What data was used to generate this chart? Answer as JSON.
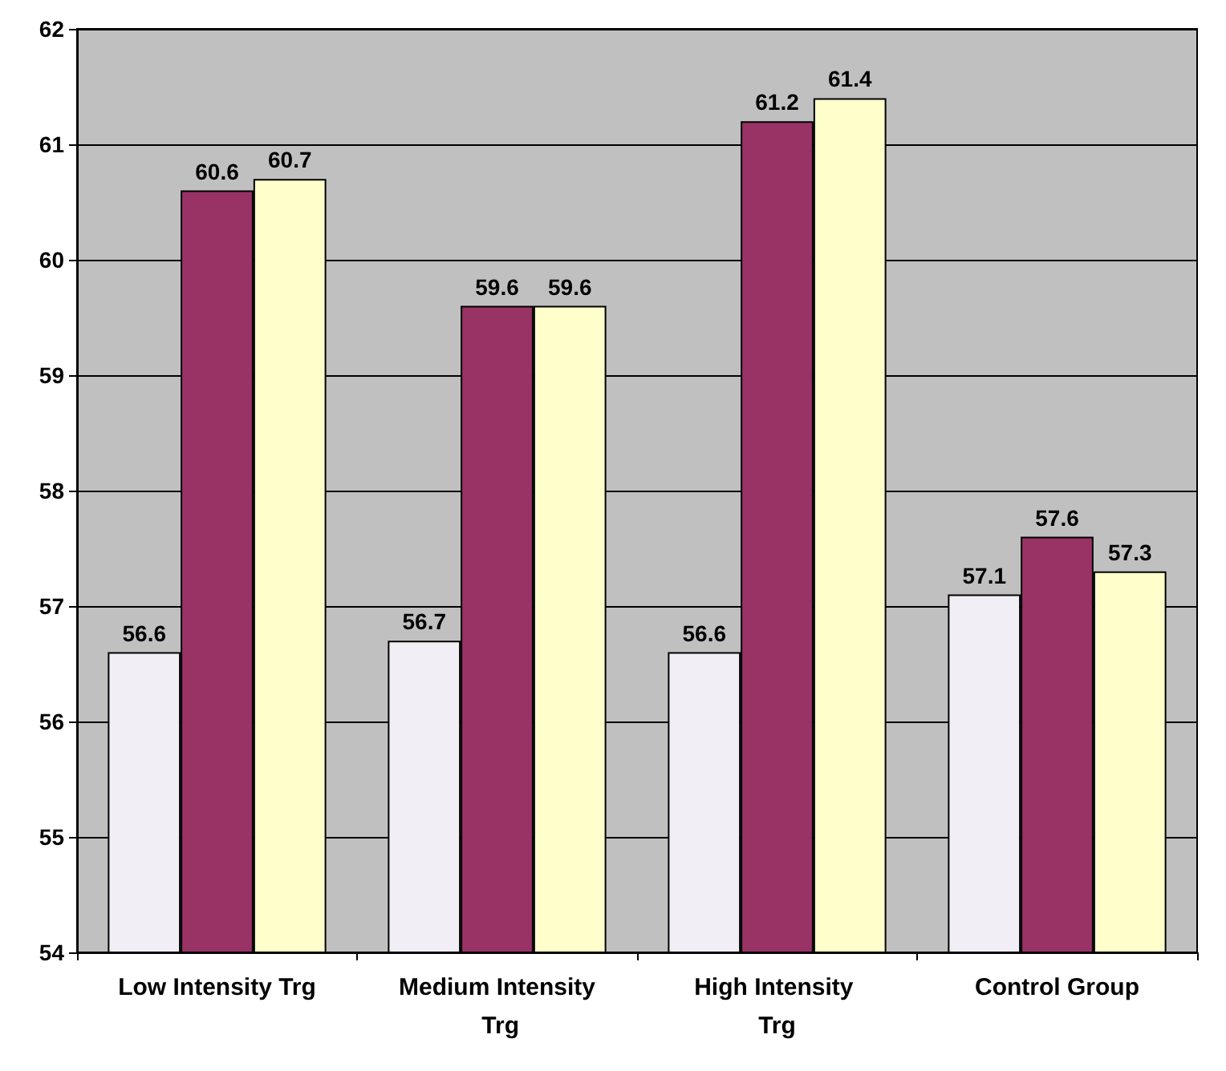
{
  "chart_data": {
    "type": "bar",
    "categories": [
      "Low Intensity Trg",
      "Medium Intensity Trg",
      "High Intensity Trg",
      "Control Group"
    ],
    "series": [
      {
        "color": "#f2eef6",
        "values": [
          56.6,
          56.7,
          56.6,
          57.1
        ]
      },
      {
        "color": "#993366",
        "values": [
          60.6,
          59.6,
          61.2,
          57.6
        ]
      },
      {
        "color": "#ffffcc",
        "values": [
          60.7,
          59.6,
          61.4,
          57.3
        ]
      }
    ],
    "ylim": [
      54,
      62
    ],
    "yticks": [
      54,
      55,
      56,
      57,
      58,
      59,
      60,
      61,
      62
    ],
    "grid": "y",
    "data_labels": true
  }
}
